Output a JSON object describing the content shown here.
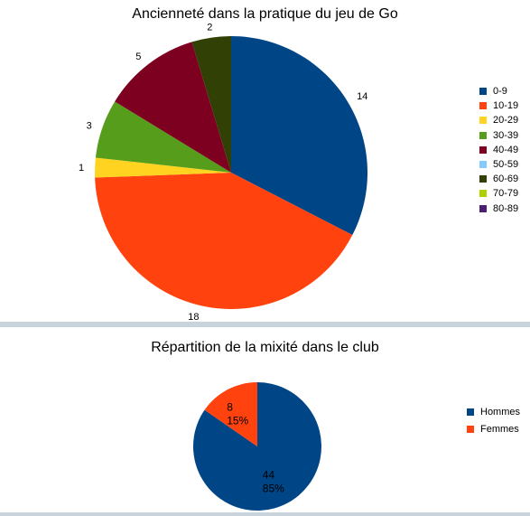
{
  "chart_data": [
    {
      "type": "pie",
      "title": "Ancienneté dans la pratique du jeu de Go",
      "categories": [
        "0-9",
        "10-19",
        "20-29",
        "30-39",
        "40-49",
        "50-59",
        "60-69",
        "70-79",
        "80-89"
      ],
      "values": [
        14,
        18,
        1,
        3,
        5,
        0,
        2,
        0,
        0
      ],
      "data_labels": [
        "14",
        "18",
        "1",
        "3",
        "5",
        "",
        "2",
        "",
        ""
      ],
      "colors": [
        "#004586",
        "#ff420e",
        "#ffd320",
        "#579d1c",
        "#7e0021",
        "#83caff",
        "#314004",
        "#aecf00",
        "#4b1f6f"
      ],
      "legend": "right"
    },
    {
      "type": "pie",
      "title": "Répartition de la mixité dans le club",
      "categories": [
        "Hommes",
        "Femmes"
      ],
      "values": [
        44,
        8
      ],
      "percent_labels": [
        "85%",
        "15%"
      ],
      "colors": [
        "#004586",
        "#ff420e"
      ],
      "legend": "right"
    }
  ]
}
